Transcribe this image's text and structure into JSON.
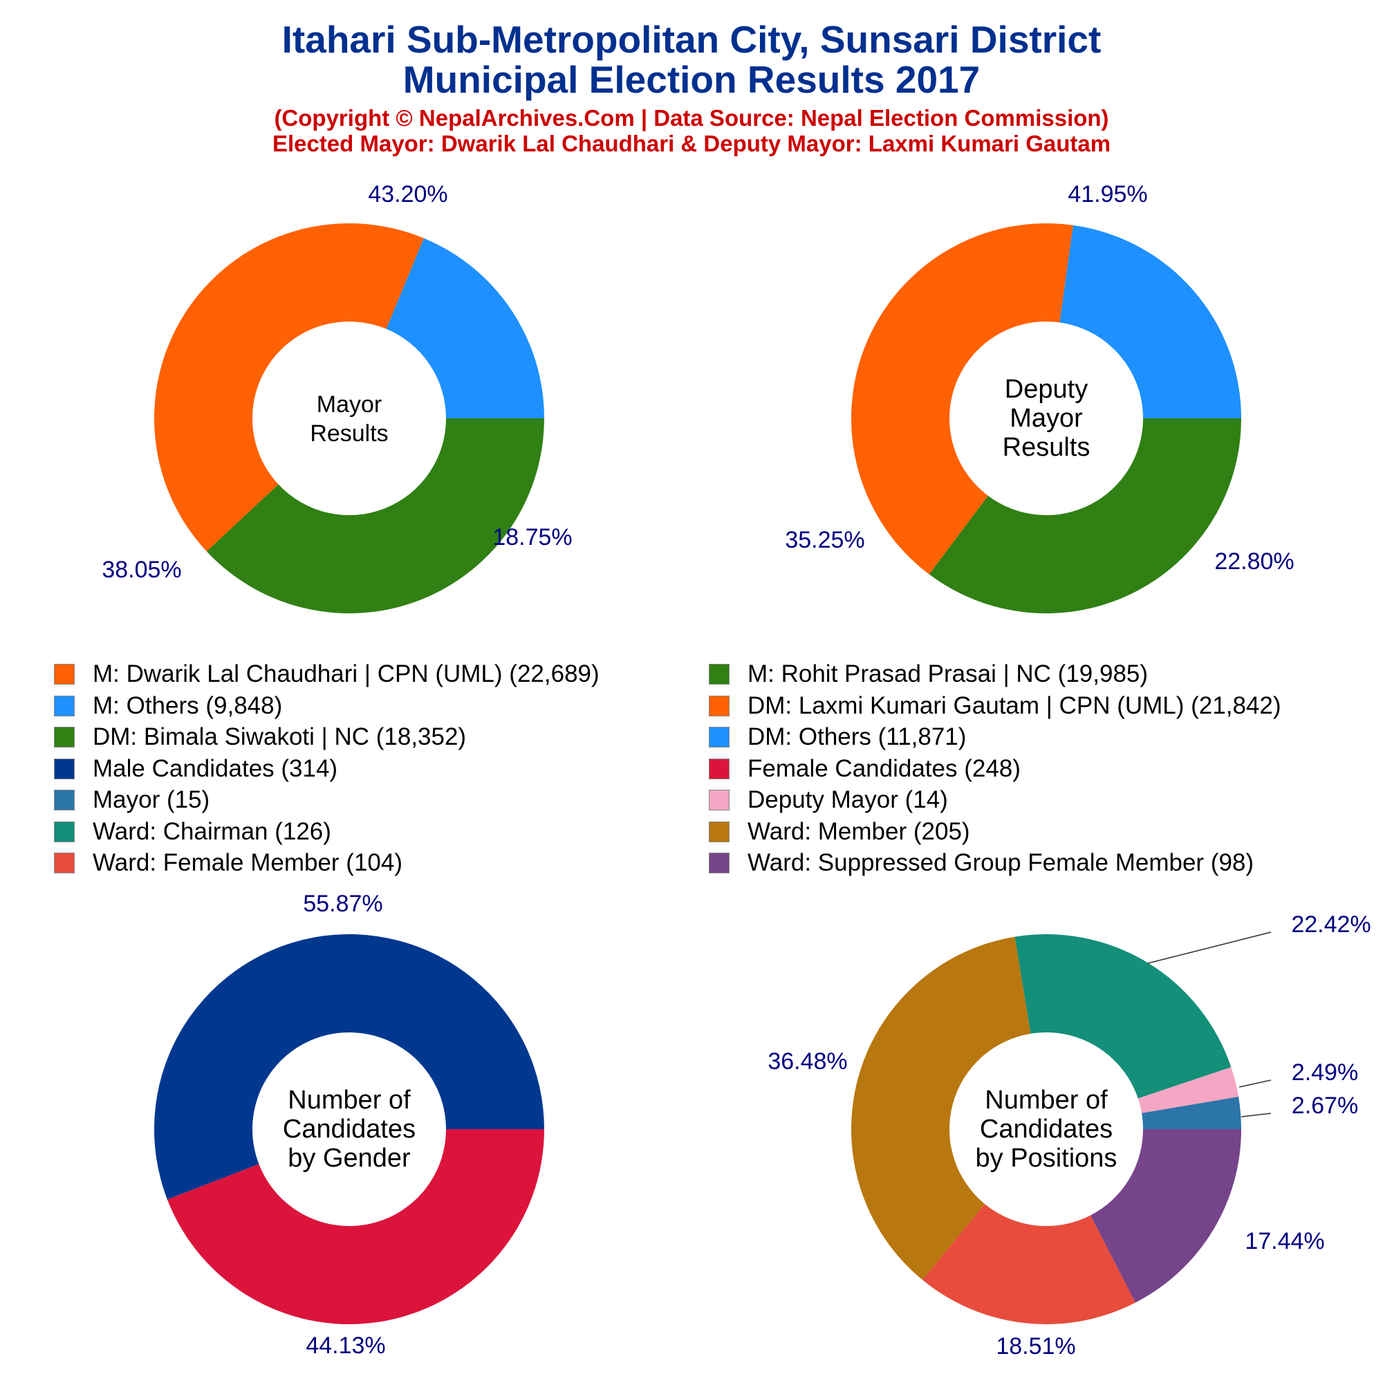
{
  "header": {
    "title_line1": "Itahari Sub-Metropolitan City, Sunsari District",
    "title_line2": "Municipal Election Results 2017",
    "subtitle_line1": "(Copyright © NepalArchives.Com | Data Source: Nepal Election Commission)",
    "subtitle_line2": "Elected Mayor: Dwarik Lal Chaudhari & Deputy Mayor: Laxmi Kumari Gautam",
    "title_color": "#00308F",
    "subtitle_color": "#CC0000"
  },
  "legend": [
    {
      "label": "M: Dwarik Lal Chaudhari | CPN (UML) (22,689)",
      "color": "#FF6103"
    },
    {
      "label": "M: Rohit Prasad Prasai | NC (19,985)",
      "color": "#308014"
    },
    {
      "label": "M: Others (9,848)",
      "color": "#1E90FF"
    },
    {
      "label": "DM: Laxmi Kumari Gautam | CPN (UML) (21,842)",
      "color": "#FF6103"
    },
    {
      "label": "DM: Bimala Siwakoti | NC (18,352)",
      "color": "#308014"
    },
    {
      "label": "DM: Others (11,871)",
      "color": "#1E90FF"
    },
    {
      "label": "Male Candidates (314)",
      "color": "#00388F"
    },
    {
      "label": "Female Candidates (248)",
      "color": "#DC143C"
    },
    {
      "label": "Mayor (15)",
      "color": "#2B75A8"
    },
    {
      "label": "Deputy Mayor (14)",
      "color": "#F4A6C4"
    },
    {
      "label": "Ward: Chairman (126)",
      "color": "#138F7A"
    },
    {
      "label": "Ward: Member (205)",
      "color": "#B8770F"
    },
    {
      "label": "Ward: Female Member (104)",
      "color": "#E74C3C"
    },
    {
      "label": "Ward: Suppressed Group Female Member (98)",
      "color": "#76448A"
    }
  ],
  "chart_data": [
    {
      "type": "pie",
      "center_label": [
        "Mayor",
        "Results"
      ],
      "slices": [
        {
          "name": "M: Others",
          "value": 9848,
          "percent_label": "18.75%",
          "color": "#1E90FF"
        },
        {
          "name": "M: Dwarik Lal Chaudhari | CPN (UML)",
          "value": 22689,
          "percent_label": "43.20%",
          "color": "#FF6103"
        },
        {
          "name": "M: Rohit Prasad Prasai | NC",
          "value": 19985,
          "percent_label": "38.05%",
          "color": "#308014"
        }
      ]
    },
    {
      "type": "pie",
      "center_label": [
        "Deputy",
        "Mayor",
        "Results"
      ],
      "slices": [
        {
          "name": "DM: Others",
          "value": 11871,
          "percent_label": "22.80%",
          "color": "#1E90FF"
        },
        {
          "name": "DM: Laxmi Kumari Gautam | CPN (UML)",
          "value": 21842,
          "percent_label": "41.95%",
          "color": "#FF6103"
        },
        {
          "name": "DM: Bimala Siwakoti | NC",
          "value": 18352,
          "percent_label": "35.25%",
          "color": "#308014"
        }
      ]
    },
    {
      "type": "pie",
      "center_label": [
        "Number of",
        "Candidates",
        "by Gender"
      ],
      "slices": [
        {
          "name": "Male Candidates",
          "value": 314,
          "percent_label": "55.87%",
          "color": "#00388F"
        },
        {
          "name": "Female Candidates",
          "value": 248,
          "percent_label": "44.13%",
          "color": "#DC143C"
        }
      ]
    },
    {
      "type": "pie",
      "center_label": [
        "Number of",
        "Candidates",
        "by Positions"
      ],
      "slices": [
        {
          "name": "Mayor",
          "value": 15,
          "percent_label": "2.67%",
          "color": "#2B75A8"
        },
        {
          "name": "Deputy Mayor",
          "value": 14,
          "percent_label": "2.49%",
          "color": "#F4A6C4"
        },
        {
          "name": "Ward: Chairman",
          "value": 126,
          "percent_label": "22.42%",
          "color": "#138F7A"
        },
        {
          "name": "Ward: Member",
          "value": 205,
          "percent_label": "36.48%",
          "color": "#B8770F"
        },
        {
          "name": "Ward: Female Member",
          "value": 104,
          "percent_label": "18.51%",
          "color": "#E74C3C"
        },
        {
          "name": "Ward: Suppressed Group Female Member",
          "value": 98,
          "percent_label": "17.44%",
          "color": "#76448A"
        }
      ]
    }
  ]
}
